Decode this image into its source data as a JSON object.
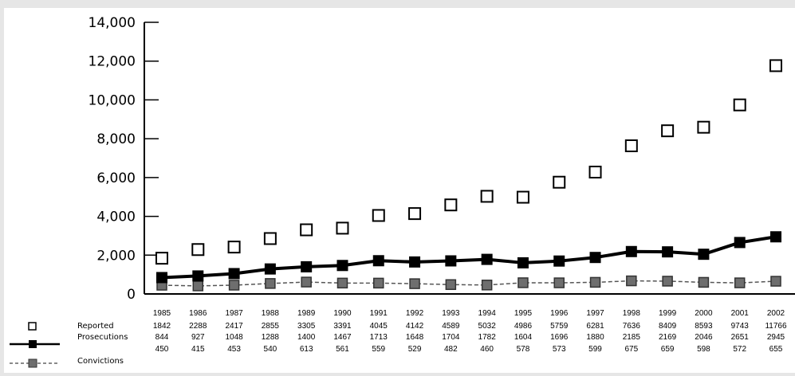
{
  "chart_data": {
    "type": "line",
    "title": "",
    "xlabel": "",
    "ylabel": "",
    "ylim": [
      0,
      14000
    ],
    "yticks": [
      0,
      2000,
      4000,
      6000,
      8000,
      10000,
      12000,
      14000
    ],
    "ytick_labels": [
      "0",
      "2,000",
      "4,000",
      "6,000",
      "8,000",
      "10,000",
      "12,000",
      "14,000"
    ],
    "grid": false,
    "legend_position": "bottom-left table",
    "categories": [
      "1985",
      "1986",
      "1987",
      "1988",
      "1989",
      "1990",
      "1991",
      "1992",
      "1993",
      "1994",
      "1995",
      "1996",
      "1997",
      "1998",
      "1999",
      "2000",
      "2001",
      "2002"
    ],
    "series": [
      {
        "name": "Reported",
        "values": [
          1842,
          2288,
          2417,
          2855,
          3305,
          3391,
          4045,
          4142,
          4589,
          5032,
          4986,
          5759,
          6281,
          7636,
          8409,
          8593,
          9743,
          11766
        ],
        "value_labels": [
          "1842",
          "2288",
          "2417",
          "2855",
          "3305",
          "3391",
          "4045",
          "4142",
          "4589",
          "5032",
          "4986",
          "5759",
          "6281",
          "7636",
          "8409",
          "8593",
          "9743",
          "11766"
        ],
        "style": "markers-only",
        "marker": "open-square",
        "color": "#000000"
      },
      {
        "name": "Prosecutions",
        "values": [
          844,
          927,
          1048,
          1288,
          1400,
          1467,
          1713,
          1648,
          1704,
          1782,
          1604,
          1696,
          1880,
          2185,
          2169,
          2046,
          2651,
          2945
        ],
        "value_labels": [
          "844",
          "927",
          "1048",
          "1288",
          "1400",
          "1467",
          "1713",
          "1648",
          "1704",
          "1782",
          "1604",
          "1696",
          "1880",
          "2185",
          "2169",
          "2046",
          "2651",
          "2945"
        ],
        "style": "solid",
        "marker": "filled-square",
        "color": "#000000"
      },
      {
        "name": "Convictions",
        "values": [
          450,
          415,
          453,
          540,
          613,
          561,
          559,
          529,
          482,
          460,
          578,
          573,
          599,
          675,
          659,
          598,
          572,
          655
        ],
        "value_labels": [
          "450",
          "415",
          "453",
          "540",
          "613",
          "561",
          "559",
          "529",
          "482",
          "460",
          "578",
          "573",
          "599",
          "675",
          "659",
          "598",
          "572",
          "655"
        ],
        "style": "dashed",
        "marker": "gray-square",
        "color": "#666666"
      }
    ]
  }
}
